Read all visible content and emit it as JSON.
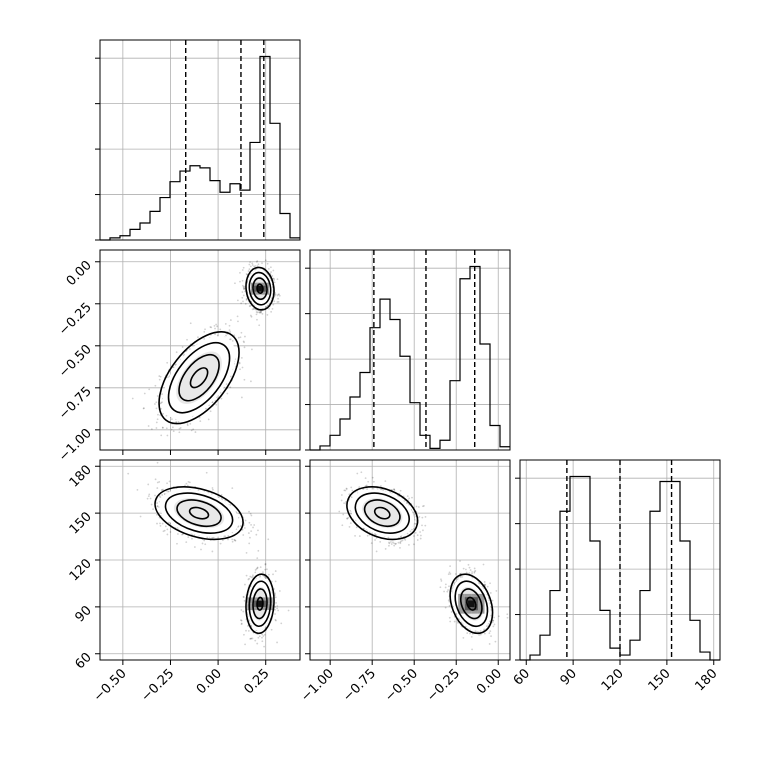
{
  "chart_data": {
    "type": "corner",
    "parameters": [
      {
        "range": [
          -0.62,
          0.43
        ],
        "ticks": [
          -0.5,
          -0.25,
          0.0,
          0.25
        ],
        "tick_labels": [
          "−0.50",
          "−0.25",
          "0.00",
          "0.25"
        ]
      },
      {
        "range": [
          -1.12,
          0.07
        ],
        "ticks": [
          -1.0,
          -0.75,
          -0.5,
          -0.25,
          0.0
        ],
        "tick_labels": [
          "−1.00",
          "−0.75",
          "−0.50",
          "−0.25",
          "0.00"
        ]
      },
      {
        "range": [
          56,
          184
        ],
        "ticks": [
          60,
          90,
          120,
          150,
          180
        ],
        "tick_labels": [
          "60",
          "90",
          "120",
          "150",
          "180"
        ]
      }
    ],
    "histograms": [
      {
        "param": 0,
        "bin_edges": [
          -0.62,
          -0.5675,
          -0.515,
          -0.4625,
          -0.41,
          -0.3575,
          -0.305,
          -0.2525,
          -0.2,
          -0.1475,
          -0.095,
          -0.0425,
          0.01,
          0.0625,
          0.115,
          0.1675,
          0.22,
          0.2725,
          0.325,
          0.3775,
          0.43
        ],
        "counts": [
          0,
          2,
          4,
          10,
          16,
          27,
          40,
          55,
          65,
          70,
          68,
          56,
          45,
          53,
          47,
          92,
          173,
          110,
          25,
          2
        ],
        "quantiles": [
          -0.17,
          0.12,
          0.24
        ]
      },
      {
        "param": 1,
        "bin_edges": [
          -1.12,
          -1.0605,
          -1.001,
          -0.9415,
          -0.882,
          -0.8225,
          -0.763,
          -0.7035,
          -0.644,
          -0.5845,
          -0.525,
          -0.4655,
          -0.406,
          -0.3465,
          -0.287,
          -0.2275,
          -0.168,
          -0.1085,
          -0.049,
          0.0105,
          0.07
        ],
        "counts": [
          0,
          5,
          18,
          38,
          65,
          95,
          150,
          185,
          160,
          115,
          58,
          18,
          2,
          12,
          85,
          210,
          225,
          130,
          30,
          4
        ],
        "quantiles": [
          -0.74,
          -0.43,
          -0.14
        ]
      },
      {
        "param": 2,
        "bin_edges": [
          56,
          62.4,
          68.8,
          75.2,
          81.6,
          88,
          94.4,
          100.8,
          107.2,
          113.6,
          120,
          126.4,
          132.8,
          139.2,
          145.6,
          152,
          158.4,
          164.8,
          171.2,
          177.6,
          184
        ],
        "counts": [
          0,
          5,
          25,
          70,
          150,
          185,
          185,
          120,
          50,
          12,
          5,
          20,
          70,
          150,
          180,
          180,
          120,
          40,
          8,
          0
        ],
        "quantiles": [
          86,
          120,
          153
        ]
      }
    ],
    "pairs": [
      {
        "x_param": 0,
        "y_param": 1,
        "modes": [
          {
            "cx": -0.1,
            "cy": -0.69,
            "sx": 0.1,
            "sy": 0.13,
            "rho": 0.55,
            "weight": 0.55
          },
          {
            "cx": 0.22,
            "cy": -0.16,
            "sx": 0.035,
            "sy": 0.06,
            "rho": -0.1,
            "weight": 0.45
          }
        ]
      },
      {
        "x_param": 0,
        "y_param": 2,
        "modes": [
          {
            "cx": -0.1,
            "cy": 150,
            "sx": 0.11,
            "sy": 8,
            "rho": -0.35,
            "weight": 0.55
          },
          {
            "cx": 0.22,
            "cy": 92,
            "sx": 0.035,
            "sy": 9,
            "rho": 0.1,
            "weight": 0.45
          }
        ]
      },
      {
        "x_param": 1,
        "y_param": 2,
        "modes": [
          {
            "cx": -0.69,
            "cy": 150,
            "sx": 0.1,
            "sy": 8,
            "rho": -0.3,
            "weight": 0.55
          },
          {
            "cx": -0.16,
            "cy": 92,
            "sx": 0.06,
            "sy": 9,
            "rho": -0.3,
            "weight": 0.45
          }
        ]
      }
    ],
    "grid": true,
    "title": "",
    "xlabel": "",
    "ylabel": ""
  }
}
